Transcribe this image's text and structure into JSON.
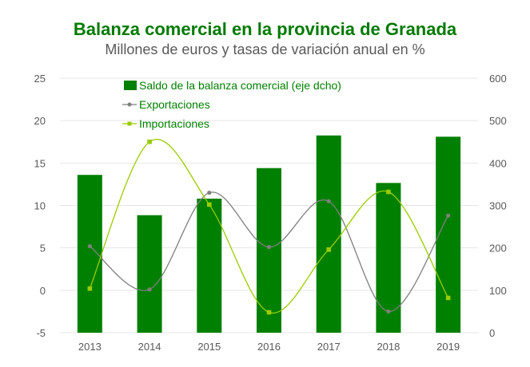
{
  "title": "Balanza comercial en la provincia de Granada",
  "subtitle": "Millones de euros y tasas de variación anual en %",
  "colors": {
    "title": "#007a00",
    "bars": "#008000",
    "exportaciones": "#7f7f7f",
    "importaciones": "#99cc00",
    "legend_text": "#008000",
    "grid": "#e6e6e6",
    "tick": "#595959"
  },
  "chart_data": {
    "type": "bar",
    "title": "Balanza comercial en la provincia de Granada",
    "subtitle": "Millones de euros y tasas de variación anual en %",
    "categories": [
      "2013",
      "2014",
      "2015",
      "2016",
      "2017",
      "2018",
      "2019"
    ],
    "left_axis": {
      "ylim": [
        -5,
        25
      ],
      "ticks": [
        "-5",
        "0",
        "5",
        "10",
        "15",
        "20",
        "25"
      ]
    },
    "right_axis": {
      "ylim": [
        0,
        600
      ],
      "ticks": [
        "0",
        "100",
        "200",
        "300",
        "400",
        "500",
        "600"
      ]
    },
    "grid": true,
    "legend_position": "top-left",
    "series": [
      {
        "name": "Saldo de la balanza comercial (eje dcho)",
        "type": "bar",
        "axis": "right",
        "values": [
          372,
          277,
          316,
          388,
          465,
          353,
          462
        ]
      },
      {
        "name": "Exportaciones",
        "type": "line",
        "axis": "left",
        "values": [
          5.2,
          0.1,
          11.5,
          5.1,
          10.5,
          -2.5,
          8.8
        ]
      },
      {
        "name": "Importaciones",
        "type": "line",
        "axis": "left",
        "values": [
          0.2,
          17.5,
          10.1,
          -2.6,
          4.8,
          11.6,
          -0.9
        ]
      }
    ]
  }
}
